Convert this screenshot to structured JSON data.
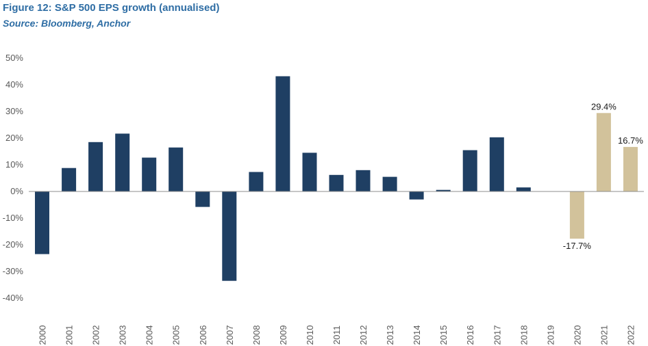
{
  "header": {
    "title": "Figure 12: S&P 500 EPS growth (annualised)",
    "source": "Source: Bloomberg, Anchor"
  },
  "chart_data": {
    "type": "bar",
    "title": "Figure 12: S&P 500 EPS growth (annualised)",
    "xlabel": "",
    "ylabel": "",
    "ylim": [
      -40,
      50
    ],
    "yticks": [
      50,
      40,
      30,
      20,
      10,
      0,
      -10,
      -20,
      -30,
      -40
    ],
    "ytick_labels": [
      "50%",
      "40%",
      "30%",
      "20%",
      "10%",
      "0%",
      "-10%",
      "-20%",
      "-30%",
      "-40%"
    ],
    "grid": false,
    "categories": [
      "2000",
      "2001",
      "2002",
      "2003",
      "2004",
      "2005",
      "2006",
      "2007",
      "2008",
      "2009",
      "2010",
      "2011",
      "2012",
      "2013",
      "2014",
      "2015",
      "2016",
      "2017",
      "2018",
      "2019",
      "2020",
      "2021",
      "2022"
    ],
    "values": [
      -23.5,
      8.8,
      18.5,
      21.7,
      12.7,
      16.5,
      -5.8,
      -33.5,
      7.3,
      43.2,
      14.5,
      6.2,
      8.0,
      5.5,
      -3.0,
      0.6,
      15.5,
      20.3,
      1.5,
      null,
      -17.7,
      29.4,
      16.7
    ],
    "colors": {
      "actual": "#1f3f63",
      "forecast": "#d2c29b",
      "axis": "#8c8c8c",
      "title": "#2e6da4"
    },
    "forecast_categories": [
      "2020",
      "2021",
      "2022"
    ],
    "data_labels": [
      {
        "category": "2020",
        "text": "-17.7%"
      },
      {
        "category": "2021",
        "text": "29.4%"
      },
      {
        "category": "2022",
        "text": "16.7%"
      }
    ]
  }
}
